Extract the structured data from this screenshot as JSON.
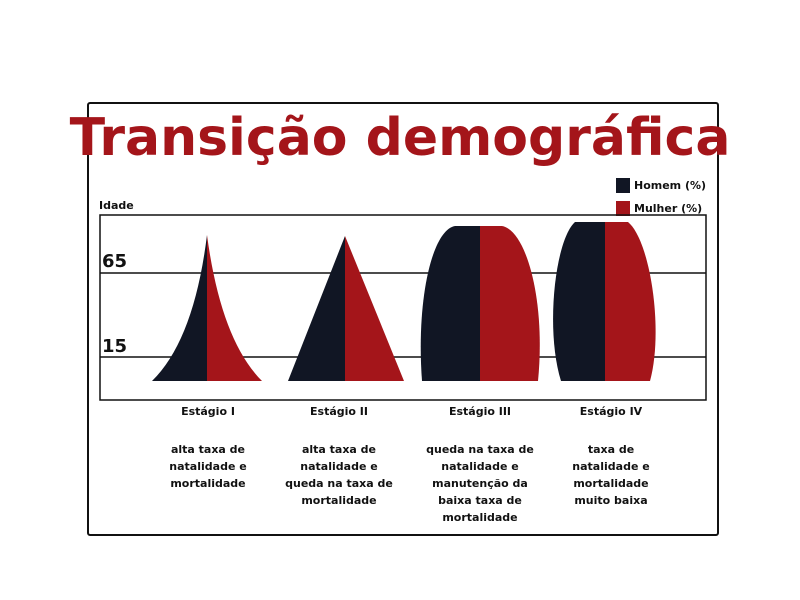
{
  "title": "Transição demográfica",
  "legend": [
    {
      "label": "Homem (%)",
      "color": "#111624"
    },
    {
      "label": "Mulher (%)",
      "color": "#a4151a"
    }
  ],
  "y_axis_title": "Idade",
  "y_ticks": [
    "65",
    "15"
  ],
  "stages": [
    {
      "name": "Estágio I",
      "description": "alta taxa de\nnatalidade e\nmortalidade"
    },
    {
      "name": "Estágio II",
      "description": "alta taxa de\nnatalidade e\nqueda na taxa de\nmortalidade"
    },
    {
      "name": "Estágio III",
      "description": "queda na taxa de\nnatalidade e\nmanutenção da\nbaixa taxa de\nmortalidade"
    },
    {
      "name": "Estágio IV",
      "description": "taxa de\nnatalidade e\nmortalidade\nmuito baixa"
    }
  ]
}
